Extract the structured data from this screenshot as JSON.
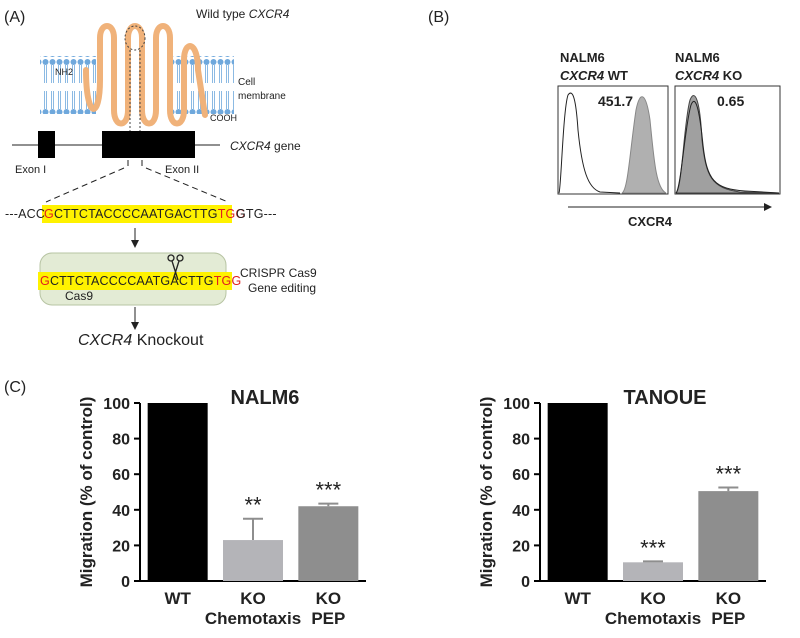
{
  "panel_a": {
    "label": "(A)",
    "protein": {
      "prefix": "Wild type",
      "gene": "CXCR4"
    },
    "n_term": "NH2",
    "c_term": "COOH",
    "membrane": [
      "Cell",
      "membrane"
    ],
    "gene_label": {
      "gene": "CXCR4",
      "suffix": "gene"
    },
    "exons": [
      "Exon I",
      "Exon II"
    ],
    "flank_left": "---ACC",
    "sequence": [
      "G",
      "CTTCTACCCCAATGACTTG",
      "TGG"
    ],
    "flank_right": "GTG---",
    "edit_sequence": [
      "G",
      "CTTCTACCCCAATGACTTG",
      "TGG"
    ],
    "cas9": "Cas9",
    "editing": [
      "CRISPR Cas9",
      "Gene editing"
    ],
    "result": {
      "gene": "CXCR4",
      "suffix": "Knockout"
    }
  },
  "panel_b": {
    "label": "(B)",
    "samples": [
      {
        "cell": "NALM6",
        "gene": "CXCR4",
        "genotype": "WT",
        "value": 451.7
      },
      {
        "cell": "NALM6",
        "gene": "CXCR4",
        "genotype": "KO",
        "value": 0.65
      }
    ],
    "x_label": "CXCR4"
  },
  "panel_c": {
    "label": "(C)"
  },
  "chart_data": [
    {
      "type": "bar",
      "title": "NALM6",
      "y_label": "Migration (% of control)",
      "categories": [
        [
          "WT"
        ],
        [
          "KO",
          "Chemotaxis"
        ],
        [
          "KO",
          "PEP"
        ]
      ],
      "values": [
        100,
        23,
        42
      ],
      "errors": [
        null,
        12,
        1.5
      ],
      "significance": [
        null,
        "**",
        "***"
      ],
      "colors": [
        "#000000",
        "#b4b4b8",
        "#8e8e8e"
      ],
      "ylim": [
        0,
        100
      ],
      "yticks": [
        0,
        20,
        40,
        60,
        80,
        100
      ]
    },
    {
      "type": "bar",
      "title": "TANOUE",
      "y_label": "Migration (% of control)",
      "categories": [
        [
          "WT"
        ],
        [
          "KO",
          "Chemotaxis"
        ],
        [
          "KO",
          "PEP"
        ]
      ],
      "values": [
        100,
        10.5,
        50.5
      ],
      "errors": [
        null,
        0.5,
        2
      ],
      "significance": [
        null,
        "***",
        "***"
      ],
      "colors": [
        "#000000",
        "#b4b4b8",
        "#8e8e8e"
      ],
      "ylim": [
        0,
        100
      ],
      "yticks": [
        0,
        20,
        40,
        60,
        80,
        100
      ]
    }
  ]
}
